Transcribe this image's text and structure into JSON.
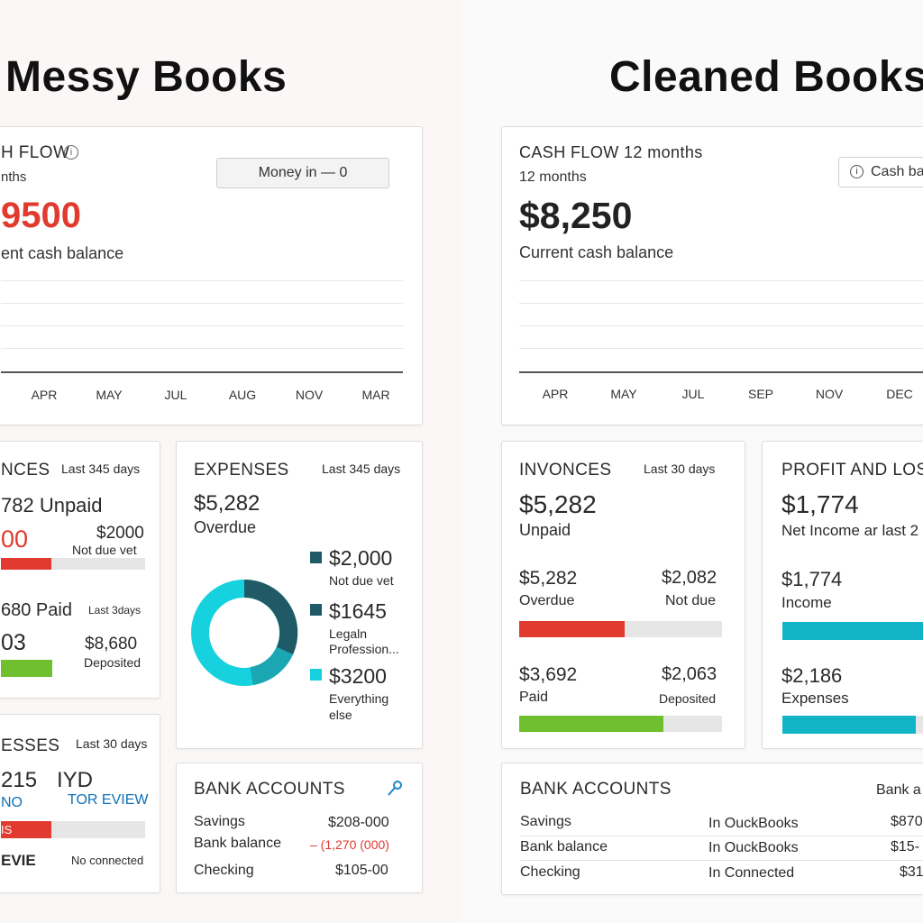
{
  "headings": {
    "left": "Messy Books",
    "right": "Cleaned Books"
  },
  "colors": {
    "red": "#e13a2e",
    "green": "#6fbf2f",
    "teal": "#12b5c5",
    "dark_teal": "#1f5a66",
    "cyan": "#16d2df"
  },
  "messy": {
    "cashflow": {
      "title": "H FLOW",
      "info_icon": "info-icon",
      "period": "nths",
      "amount": "9500",
      "caption": "ent cash balance",
      "button_label": "Money in — 0",
      "months": [
        "APR",
        "MAY",
        "JUL",
        "AUG",
        "NOV",
        "MAR"
      ]
    },
    "invoices": {
      "title": "NCES",
      "period": "Last 345 days",
      "unpaid": "782 Unpaid",
      "overdue_amount": "00",
      "not_due_amount": "$2000",
      "not_due_label": "Not due vet",
      "red_bar_fill": 0.35,
      "paid": "680 Paid",
      "paid_period": "Last 3days",
      "deposited_left": "03",
      "deposited_amount": "$8,680",
      "deposited_label": "Deposited",
      "green_bar_fill": 0.3
    },
    "expenses_chart": {
      "title": "EXPENSES",
      "period": "Last 345 days",
      "amount": "$5,282",
      "caption": "Overdue",
      "legend": [
        {
          "amount": "$2,000",
          "label": "Not due vet",
          "color": "#1f5a66"
        },
        {
          "amount": "$1645",
          "label": "Legaln Profession...",
          "color": "#1f5a66"
        },
        {
          "amount": "$3200",
          "label": "Everything else",
          "color": "#16d2df"
        }
      ]
    },
    "expenses2": {
      "title": "ESSES",
      "period": "Last 30 days",
      "amount": "215",
      "currency": "IYD",
      "status": "NO",
      "link": "TOR EVIEW",
      "bar_text": "IS",
      "bar_fill": 0.35,
      "bottom_left": "EVIE",
      "bottom_right": "No connected"
    },
    "bank": {
      "title": "BANK ACCOUNTS",
      "pin_icon": "pin-icon",
      "rows": [
        {
          "label": "Savings",
          "value": "$208-000"
        },
        {
          "label": "Bank balance",
          "value": "– (1,270 (000)"
        },
        {
          "label": "Checking",
          "value": "$105-00"
        }
      ]
    }
  },
  "clean": {
    "cashflow": {
      "title": "CASH FLOW 12 months",
      "period": "12 months",
      "amount": "$8,250",
      "caption": "Current cash balance",
      "button_label": "Cash ba",
      "months": [
        "APR",
        "MAY",
        "JUL",
        "SEP",
        "NOV",
        "DEC"
      ]
    },
    "invoices": {
      "title": "INVONCES",
      "period": "Last 30 days",
      "amount": "$5,282",
      "caption": "Unpaid",
      "overdue_amount": "$5,282",
      "overdue_label": "Overdue",
      "not_due_amount": "$2,082",
      "not_due_label": "Not due",
      "red_bar_fill": 0.52,
      "paid_amount": "$3,692",
      "paid_label": "Paid",
      "deposited_amount": "$2,063",
      "deposited_label": "Deposited",
      "green_bar_fill": 0.71
    },
    "profit": {
      "title": "PROFIT AND LOS",
      "amount": "$1,774",
      "caption": "Net Income ar last 2",
      "income_amount": "$1,774",
      "income_label": "Income",
      "income_fill": 1.0,
      "expenses_amount": "$2,186",
      "expenses_label": "Expenses",
      "expenses_fill": 0.88
    },
    "bank": {
      "title": "BANK ACCOUNTS",
      "header_right": "Bank a",
      "rows": [
        {
          "label": "Savings",
          "status": "In OuckBooks",
          "value": "$870"
        },
        {
          "label": "Bank balance",
          "status": "In OuckBooks",
          "value": "$15-"
        },
        {
          "label": "Checking",
          "status": "In Connected",
          "value": "$31"
        }
      ]
    }
  }
}
